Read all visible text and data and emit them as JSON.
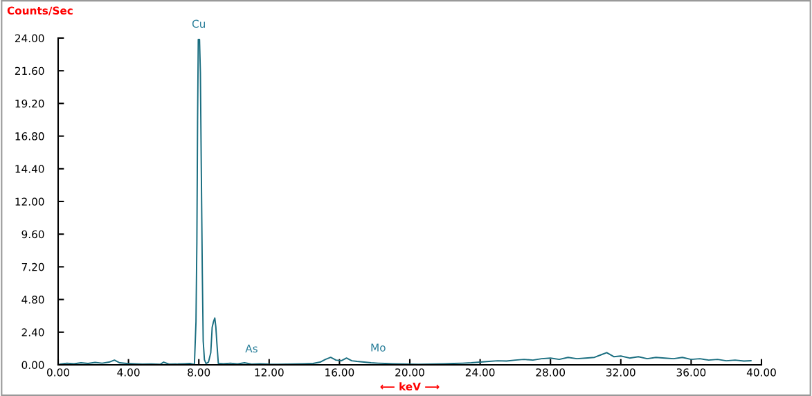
{
  "chart_data": {
    "type": "line",
    "ylabel": "Counts/Sec",
    "xlabel": "⟵ keV ⟶",
    "x": [
      0.1,
      0.5,
      0.9,
      1.3,
      1.7,
      2.1,
      2.5,
      2.9,
      3.2,
      3.5,
      3.9,
      4.3,
      4.8,
      5.3,
      5.8,
      6.0,
      6.3,
      6.8,
      7.2,
      7.5,
      7.75,
      7.84,
      7.89,
      7.93,
      7.97,
      8.04,
      8.09,
      8.13,
      8.2,
      8.25,
      8.32,
      8.41,
      8.55,
      8.68,
      8.76,
      8.84,
      8.91,
      8.97,
      9.03,
      9.11,
      9.4,
      9.8,
      10.2,
      10.6,
      11.0,
      11.5,
      12.0,
      12.5,
      13.0,
      13.5,
      14.0,
      14.5,
      14.9,
      15.2,
      15.5,
      15.8,
      16.1,
      16.4,
      16.7,
      17.0,
      17.4,
      17.8,
      18.2,
      18.6,
      19.0,
      19.5,
      20.0,
      20.5,
      21.0,
      21.5,
      22.0,
      22.5,
      23.0,
      23.5,
      24.0,
      24.5,
      25.0,
      25.5,
      26.0,
      26.5,
      27.0,
      27.5,
      28.0,
      28.5,
      29.0,
      29.5,
      30.0,
      30.5,
      30.9,
      31.2,
      31.6,
      32.0,
      32.5,
      33.0,
      33.5,
      34.0,
      34.5,
      35.0,
      35.5,
      36.0,
      36.5,
      37.0,
      37.5,
      38.0,
      38.5,
      39.0,
      39.4
    ],
    "series": [
      {
        "color": "#1a6e80",
        "values": [
          0.05,
          0.12,
          0.08,
          0.15,
          0.1,
          0.18,
          0.12,
          0.2,
          0.35,
          0.15,
          0.1,
          0.08,
          0.05,
          0.06,
          0.04,
          0.2,
          0.05,
          0.06,
          0.08,
          0.1,
          0.03,
          3.19,
          9.07,
          17.91,
          23.9,
          23.9,
          21.44,
          15.9,
          6.69,
          1.74,
          0.37,
          0.1,
          0.2,
          0.89,
          2.76,
          3.19,
          3.44,
          2.76,
          1.56,
          0.1,
          0.08,
          0.12,
          0.06,
          0.15,
          0.05,
          0.08,
          0.05,
          0.04,
          0.05,
          0.06,
          0.08,
          0.1,
          0.2,
          0.4,
          0.55,
          0.35,
          0.3,
          0.5,
          0.3,
          0.25,
          0.2,
          0.15,
          0.12,
          0.1,
          0.08,
          0.06,
          0.05,
          0.04,
          0.05,
          0.06,
          0.08,
          0.1,
          0.12,
          0.15,
          0.2,
          0.25,
          0.3,
          0.28,
          0.35,
          0.4,
          0.35,
          0.45,
          0.5,
          0.4,
          0.55,
          0.45,
          0.5,
          0.55,
          0.75,
          0.9,
          0.6,
          0.65,
          0.5,
          0.6,
          0.45,
          0.55,
          0.5,
          0.45,
          0.55,
          0.4,
          0.45,
          0.35,
          0.4,
          0.3,
          0.35,
          0.28,
          0.3
        ]
      }
    ],
    "xlim": [
      0,
      40
    ],
    "ylim": [
      0,
      24
    ],
    "xticks": [
      {
        "value": 0,
        "label": "0.00"
      },
      {
        "value": 4,
        "label": "4.00"
      },
      {
        "value": 8,
        "label": "8.00"
      },
      {
        "value": 12,
        "label": "12.00"
      },
      {
        "value": 16,
        "label": "16.00"
      },
      {
        "value": 20,
        "label": "20.00"
      },
      {
        "value": 24,
        "label": "24.00"
      },
      {
        "value": 28,
        "label": "28.00"
      },
      {
        "value": 32,
        "label": "32.00"
      },
      {
        "value": 36,
        "label": "36.00"
      },
      {
        "value": 40,
        "label": "40.00"
      }
    ],
    "yticks": [
      {
        "value": 0,
        "label": "0.00"
      },
      {
        "value": 2.4,
        "label": "2.40"
      },
      {
        "value": 4.8,
        "label": "4.80"
      },
      {
        "value": 7.2,
        "label": "7.20"
      },
      {
        "value": 9.6,
        "label": "9.60"
      },
      {
        "value": 12,
        "label": "12.00"
      },
      {
        "value": 14.4,
        "label": "14.40"
      },
      {
        "value": 16.8,
        "label": "16.80"
      },
      {
        "value": 19.2,
        "label": "19.20"
      },
      {
        "value": 21.6,
        "label": "21.60"
      },
      {
        "value": 24,
        "label": "24.00"
      }
    ],
    "annotations": [
      {
        "text": "Cu",
        "x": 8.0,
        "y": 23.9
      },
      {
        "text": "As",
        "x": 11.0,
        "y": 0.05
      },
      {
        "text": "Mo",
        "x": 18.2,
        "y": 0.12
      }
    ],
    "grid": false,
    "legend": false
  }
}
